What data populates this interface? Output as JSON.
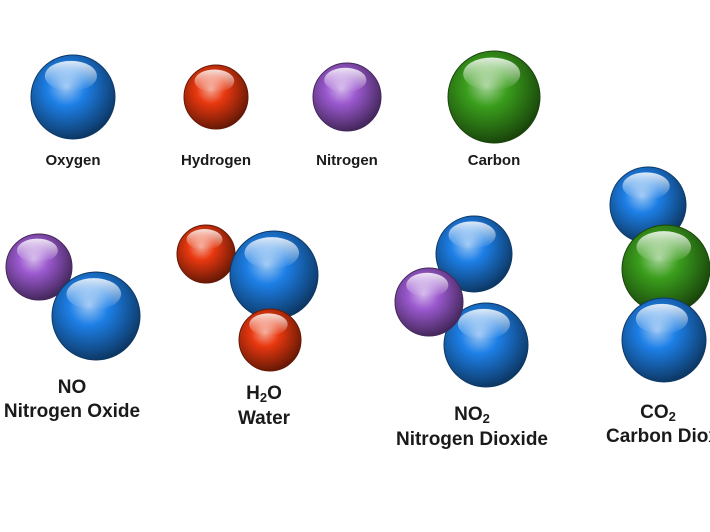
{
  "colors": {
    "oxygen": "#1d7fe6",
    "hydrogen": "#e8380f",
    "nitrogen": "#9b59cf",
    "carbon": "#3a9e1c",
    "bond": "#9a9a9a",
    "text": "#1a1a1a"
  },
  "legend": [
    {
      "element": "oxygen",
      "label": "Oxygen"
    },
    {
      "element": "hydrogen",
      "label": "Hydrogen"
    },
    {
      "element": "nitrogen",
      "label": "Nitrogen"
    },
    {
      "element": "carbon",
      "label": "Carbon"
    }
  ],
  "molecules": [
    {
      "id": "no",
      "formula_base": "NO",
      "formula_sub": "",
      "formula_tail": "",
      "name": "Nitrogen Oxide",
      "atoms": [
        "nitrogen",
        "oxygen"
      ]
    },
    {
      "id": "h2o",
      "formula_base": "H",
      "formula_sub": "2",
      "formula_tail": "O",
      "name": "Water",
      "atoms": [
        "hydrogen",
        "oxygen",
        "hydrogen"
      ]
    },
    {
      "id": "no2",
      "formula_base": "NO",
      "formula_sub": "2",
      "formula_tail": "",
      "name": "Nitrogen Dioxide",
      "atoms": [
        "oxygen",
        "nitrogen",
        "oxygen"
      ]
    },
    {
      "id": "co2",
      "formula_base": "CO",
      "formula_sub": "2",
      "formula_tail": "",
      "name": "Carbon Dioxide",
      "atoms": [
        "oxygen",
        "carbon",
        "oxygen"
      ]
    }
  ]
}
